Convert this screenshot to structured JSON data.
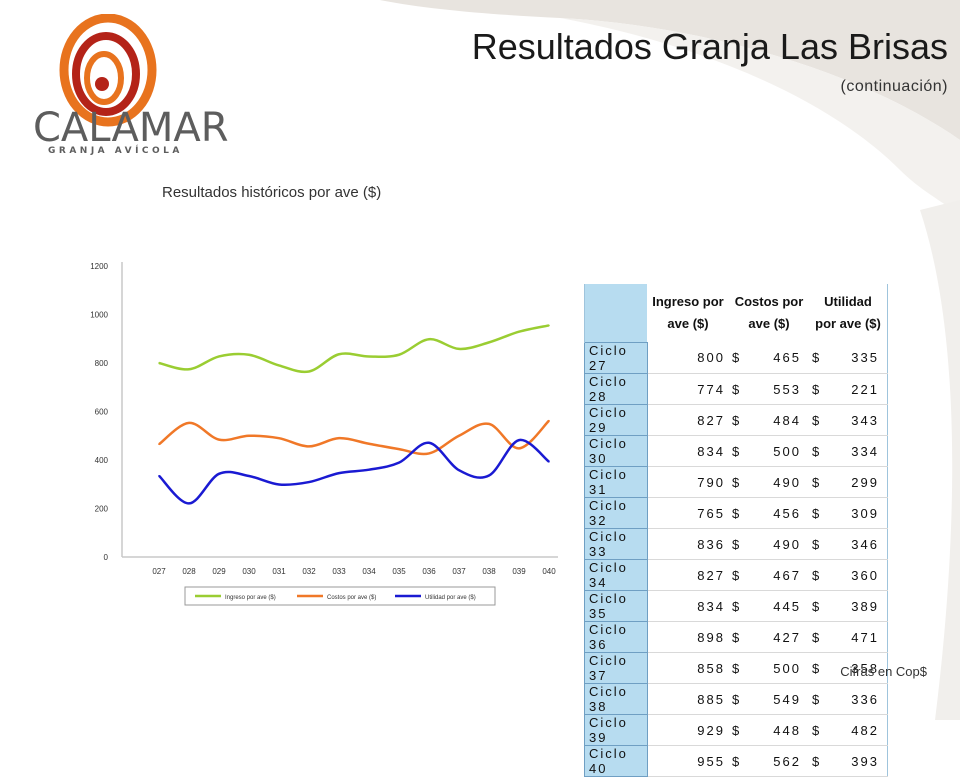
{
  "header": {
    "title": "Resultados Granja Las Brisas",
    "subtitle": "(continuación)"
  },
  "logo": {
    "name": "CALAMAR",
    "tagline": "GRANJA AVÍCOLA"
  },
  "chart_caption": "Resultados históricos por ave ($)",
  "footer_note": "Cifras en Cop$",
  "colors": {
    "ingreso": "#9acd32",
    "costos": "#f07828",
    "utilidad": "#1a1ad2",
    "table_header_bg": "#b7dcf0",
    "logo_orange": "#e8731e",
    "logo_red": "#b42318"
  },
  "chart_data": {
    "type": "line",
    "categories": [
      "027",
      "028",
      "029",
      "030",
      "031",
      "032",
      "033",
      "034",
      "035",
      "036",
      "037",
      "038",
      "039",
      "040"
    ],
    "series": [
      {
        "name": "Ingreso por ave ($)",
        "values": [
          800,
          774,
          827,
          834,
          790,
          765,
          836,
          827,
          834,
          898,
          858,
          885,
          929,
          955
        ]
      },
      {
        "name": "Costos por ave ($)",
        "values": [
          465,
          553,
          484,
          500,
          490,
          456,
          490,
          467,
          445,
          427,
          500,
          549,
          448,
          562
        ]
      },
      {
        "name": "Utilidad por ave ($)",
        "values": [
          335,
          221,
          343,
          334,
          299,
          309,
          346,
          360,
          389,
          471,
          358,
          336,
          482,
          393
        ]
      }
    ],
    "yticks": [
      "1200",
      "1000",
      "800",
      "600",
      "400",
      "200",
      "0"
    ],
    "ylim": [
      0,
      1200
    ],
    "grid": false,
    "legend_position": "bottom"
  },
  "table": {
    "headers": {
      "ingreso_l1": "Ingreso por",
      "ingreso_l2": "ave ($)",
      "costos_l1": "Costos por",
      "costos_l2": "ave ($)",
      "utilidad_l1": "Utilidad",
      "utilidad_l2": "por ave ($)"
    },
    "currency": "$",
    "rows": [
      {
        "ciclo": "Ciclo 27",
        "ingreso": "800",
        "costos": "465",
        "utilidad": "335"
      },
      {
        "ciclo": "Ciclo 28",
        "ingreso": "774",
        "costos": "553",
        "utilidad": "221"
      },
      {
        "ciclo": "Ciclo 29",
        "ingreso": "827",
        "costos": "484",
        "utilidad": "343"
      },
      {
        "ciclo": "Ciclo 30",
        "ingreso": "834",
        "costos": "500",
        "utilidad": "334"
      },
      {
        "ciclo": "Ciclo 31",
        "ingreso": "790",
        "costos": "490",
        "utilidad": "299"
      },
      {
        "ciclo": "Ciclo 32",
        "ingreso": "765",
        "costos": "456",
        "utilidad": "309"
      },
      {
        "ciclo": "Ciclo 33",
        "ingreso": "836",
        "costos": "490",
        "utilidad": "346"
      },
      {
        "ciclo": "Ciclo 34",
        "ingreso": "827",
        "costos": "467",
        "utilidad": "360"
      },
      {
        "ciclo": "Ciclo 35",
        "ingreso": "834",
        "costos": "445",
        "utilidad": "389"
      },
      {
        "ciclo": "Ciclo 36",
        "ingreso": "898",
        "costos": "427",
        "utilidad": "471"
      },
      {
        "ciclo": "Ciclo 37",
        "ingreso": "858",
        "costos": "500",
        "utilidad": "358"
      },
      {
        "ciclo": "Ciclo 38",
        "ingreso": "885",
        "costos": "549",
        "utilidad": "336"
      },
      {
        "ciclo": "Ciclo 39",
        "ingreso": "929",
        "costos": "448",
        "utilidad": "482"
      },
      {
        "ciclo": "Ciclo 40",
        "ingreso": "955",
        "costos": "562",
        "utilidad": "393"
      }
    ]
  }
}
